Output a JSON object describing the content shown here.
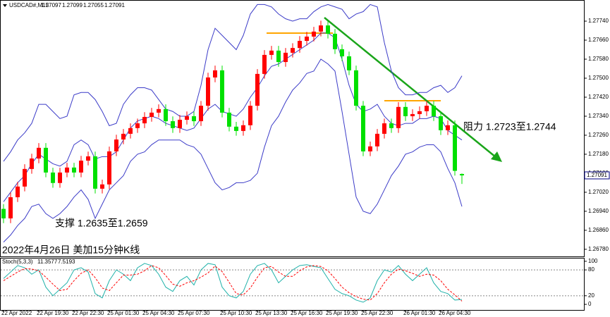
{
  "chart_data": [
    {
      "type": "candlestick",
      "title": "USDCAD#,M15",
      "open": [
        1.2695,
        1.2691,
        1.26999,
        1.27044,
        1.27118,
        1.27162,
        1.27207,
        1.27103,
        1.27059,
        1.27103,
        1.27124,
        1.27103,
        1.27153,
        1.27171,
        1.27035,
        1.27053,
        1.27192,
        1.27242,
        1.27266,
        1.2729,
        1.2731,
        1.27337,
        1.27355,
        1.2737,
        1.27319,
        1.2729,
        1.27325,
        1.2734,
        1.27319,
        1.27384,
        1.27503,
        1.27533,
        1.27355,
        1.27296,
        1.27278,
        1.27302,
        1.27384,
        1.27518,
        1.27598,
        1.27616,
        1.27568,
        1.27607,
        1.27627,
        1.27657,
        1.27675,
        1.27696,
        1.27722,
        1.27687,
        1.27622,
        1.27592,
        1.27533,
        1.27384,
        1.27192,
        1.27213,
        1.27266,
        1.2731,
        1.2729,
        1.27379,
        1.2734,
        1.27349,
        1.27361,
        1.27384,
        1.2734,
        1.27281,
        1.27302,
        1.27097
      ],
      "high": [
        1.2697,
        1.27019,
        1.27064,
        1.27138,
        1.27182,
        1.27227,
        1.27227,
        1.27123,
        1.27123,
        1.27144,
        1.27144,
        1.27173,
        1.27191,
        1.27191,
        1.27073,
        1.27212,
        1.27262,
        1.27286,
        1.2731,
        1.2733,
        1.27357,
        1.27375,
        1.2739,
        1.2739,
        1.27339,
        1.27345,
        1.2736,
        1.2736,
        1.27404,
        1.27523,
        1.27553,
        1.27553,
        1.27375,
        1.27316,
        1.27322,
        1.27404,
        1.27538,
        1.27618,
        1.27636,
        1.27636,
        1.27627,
        1.27647,
        1.27677,
        1.27695,
        1.27716,
        1.27742,
        1.27742,
        1.27707,
        1.27642,
        1.27612,
        1.27553,
        1.27404,
        1.27233,
        1.27286,
        1.2733,
        1.2733,
        1.27399,
        1.27399,
        1.27369,
        1.27381,
        1.27404,
        1.27404,
        1.2736,
        1.27322,
        1.27322,
        1.27099
      ],
      "low": [
        1.2689,
        1.2689,
        1.26979,
        1.27024,
        1.27098,
        1.27142,
        1.27083,
        1.27039,
        1.27039,
        1.27083,
        1.27083,
        1.27083,
        1.27133,
        1.27015,
        1.27015,
        1.27033,
        1.27172,
        1.27222,
        1.27246,
        1.2727,
        1.2729,
        1.27317,
        1.27335,
        1.27299,
        1.2727,
        1.2727,
        1.27305,
        1.27299,
        1.27299,
        1.27364,
        1.27483,
        1.27335,
        1.27276,
        1.27258,
        1.27258,
        1.27282,
        1.27364,
        1.27498,
        1.27578,
        1.27548,
        1.27548,
        1.27587,
        1.27607,
        1.27637,
        1.27655,
        1.27676,
        1.27667,
        1.27602,
        1.27572,
        1.27513,
        1.27364,
        1.27172,
        1.27172,
        1.27193,
        1.27246,
        1.2727,
        1.2727,
        1.2732,
        1.2732,
        1.27329,
        1.27341,
        1.2732,
        1.27261,
        1.27261,
        1.2709,
        1.27055
      ],
      "close": [
        1.2691,
        1.26999,
        1.27044,
        1.27118,
        1.27162,
        1.27207,
        1.27103,
        1.27059,
        1.27103,
        1.27124,
        1.27103,
        1.27153,
        1.27171,
        1.27035,
        1.27053,
        1.27192,
        1.27242,
        1.27266,
        1.2729,
        1.2731,
        1.27337,
        1.27355,
        1.2737,
        1.27319,
        1.2729,
        1.27325,
        1.2734,
        1.27319,
        1.27384,
        1.27503,
        1.27533,
        1.27355,
        1.27296,
        1.27278,
        1.27302,
        1.27384,
        1.27518,
        1.27598,
        1.27616,
        1.27568,
        1.27607,
        1.27627,
        1.27657,
        1.27675,
        1.27696,
        1.27722,
        1.27687,
        1.27622,
        1.27592,
        1.27533,
        1.27384,
        1.27192,
        1.27213,
        1.27266,
        1.2731,
        1.2729,
        1.27379,
        1.2734,
        1.27349,
        1.27361,
        1.27384,
        1.2734,
        1.27281,
        1.27302,
        1.2711,
        1.27091
      ],
      "up_color": "#ff0000",
      "down_color": "#00e000",
      "overlays": [
        {
          "color": "#3c3cc8",
          "values": [
            1.2715,
            1.2719,
            1.2724,
            1.2727,
            1.2731,
            1.2739,
            1.2739,
            1.2736,
            1.2733,
            1.2734,
            1.2743,
            1.2744,
            1.2744,
            1.2741,
            1.2736,
            1.273,
            1.2731,
            1.2739,
            1.2743,
            1.2746,
            1.2746,
            1.2745,
            1.2741,
            1.2737,
            1.2736,
            1.2734,
            1.2734,
            1.2736,
            1.2747,
            1.2762,
            1.2771,
            1.2768,
            1.2765,
            1.2762,
            1.2768,
            1.2777,
            1.2781,
            1.2781,
            1.278,
            1.2777,
            1.2775,
            1.2774,
            1.2775,
            1.2775,
            1.2778,
            1.278,
            1.2781,
            1.278,
            1.2779,
            1.2775,
            1.2777,
            1.2778,
            1.2781,
            1.278,
            1.2765,
            1.2753,
            1.2746,
            1.2743,
            1.2743,
            1.2744,
            1.2744,
            1.2746,
            1.2747,
            1.2744,
            1.2746,
            1.2751
          ]
        },
        {
          "color": "#3c3cc8",
          "values": [
            1.2698,
            1.2702,
            1.2706,
            1.2709,
            1.2714,
            1.2718,
            1.2716,
            1.2714,
            1.2713,
            1.2715,
            1.2722,
            1.2724,
            1.2722,
            1.2716,
            1.2717,
            1.2717,
            1.2719,
            1.2724,
            1.2729,
            1.2732,
            1.2733,
            1.2734,
            1.2733,
            1.2731,
            1.273,
            1.2729,
            1.2728,
            1.2729,
            1.2733,
            1.2737,
            1.2739,
            1.2736,
            1.2735,
            1.2734,
            1.2737,
            1.2742,
            1.2746,
            1.2751,
            1.2755,
            1.2756,
            1.2758,
            1.276,
            1.2762,
            1.2764,
            1.2766,
            1.2769,
            1.2769,
            1.2767,
            1.2758,
            1.2747,
            1.2739,
            1.2736,
            1.2737,
            1.2739,
            1.2734,
            1.2731,
            1.273,
            1.2731,
            1.2731,
            1.2733,
            1.2733,
            1.2734,
            1.2733,
            1.2728,
            1.2726,
            1.2724
          ]
        },
        {
          "color": "#3c3cc8",
          "values": [
            1.2681,
            1.2684,
            1.2688,
            1.2691,
            1.2696,
            1.2697,
            1.2693,
            1.2691,
            1.2693,
            1.2696,
            1.27,
            1.2703,
            1.2699,
            1.2691,
            1.2697,
            1.2703,
            1.2706,
            1.2709,
            1.2715,
            1.2718,
            1.2719,
            1.2722,
            1.2724,
            1.2724,
            1.2724,
            1.2724,
            1.2722,
            1.2721,
            1.2718,
            1.2712,
            1.2706,
            1.2703,
            1.2704,
            1.2706,
            1.2706,
            1.2707,
            1.271,
            1.2721,
            1.273,
            1.2734,
            1.274,
            1.2745,
            1.2748,
            1.2752,
            1.2753,
            1.2758,
            1.2756,
            1.2753,
            1.2736,
            1.2718,
            1.27,
            1.2694,
            1.2693,
            1.2697,
            1.2703,
            1.2709,
            1.2713,
            1.2718,
            1.2719,
            1.2721,
            1.2722,
            1.2722,
            1.2719,
            1.2712,
            1.2706,
            1.2696
          ]
        }
      ],
      "ylim": [
        1.2675,
        1.27829
      ],
      "yticks": [
        {
          "value": 1.2774,
          "label": "1.27740"
        },
        {
          "value": 1.2766,
          "label": "1.27660"
        },
        {
          "value": 1.2758,
          "label": "1.27580"
        },
        {
          "value": 1.275,
          "label": "1.27500"
        },
        {
          "value": 1.2742,
          "label": "1.27420"
        },
        {
          "value": 1.2734,
          "label": "1.27340"
        },
        {
          "value": 1.2726,
          "label": "1.27260"
        },
        {
          "value": 1.2718,
          "label": "1.27180"
        },
        {
          "value": 1.271,
          "label": "1.27100"
        },
        {
          "value": 1.2702,
          "label": "1.27020"
        },
        {
          "value": 1.2694,
          "label": "1.26940"
        },
        {
          "value": 1.2686,
          "label": "1.26860"
        },
        {
          "value": 1.2678,
          "label": "1.26780"
        }
      ],
      "annotations": [
        "支撑 1.2635至1.2659",
        "阻力 1.2723至1.2744",
        "2022年4月26日 美加15分钟K线"
      ]
    },
    {
      "type": "line",
      "title": "Stoch(5,3,3)",
      "series": [
        {
          "color": "#20b2aa",
          "values": [
            60,
            75,
            90,
            85,
            70,
            80,
            40,
            20,
            35,
            50,
            80,
            85,
            75,
            25,
            15,
            55,
            80,
            70,
            55,
            85,
            95,
            90,
            70,
            40,
            30,
            55,
            65,
            45,
            80,
            95,
            92,
            40,
            20,
            15,
            30,
            70,
            90,
            95,
            80,
            50,
            65,
            80,
            90,
            92,
            88,
            85,
            60,
            35,
            25,
            20,
            10,
            5,
            15,
            55,
            80,
            75,
            90,
            70,
            55,
            70,
            85,
            50,
            30,
            25,
            10,
            11.3577
          ]
        },
        {
          "color": "#ff0000",
          "dash": true,
          "values": [
            55,
            65,
            75,
            83,
            82,
            78,
            63,
            47,
            32,
            35,
            55,
            72,
            80,
            62,
            38,
            32,
            50,
            68,
            68,
            70,
            78,
            90,
            85,
            67,
            47,
            42,
            50,
            55,
            63,
            73,
            89,
            76,
            51,
            25,
            22,
            38,
            63,
            85,
            88,
            75,
            65,
            65,
            78,
            87,
            90,
            88,
            78,
            60,
            40,
            27,
            18,
            12,
            10,
            25,
            50,
            70,
            82,
            78,
            72,
            65,
            70,
            68,
            55,
            35,
            22,
            7.5193
          ]
        }
      ],
      "ylim": [
        -13,
        108
      ],
      "yticks": [
        0,
        20,
        80,
        100
      ],
      "levels": [
        20,
        80
      ],
      "xticks": [
        {
          "value": 0,
          "label": "22 Apr 2022"
        },
        {
          "value": 5,
          "label": "22 Apr 19:30"
        },
        {
          "value": 10,
          "label": "22 Apr 22:30"
        },
        {
          "value": 15,
          "label": "25 Apr 01:30"
        },
        {
          "value": 20,
          "label": "25 Apr 04:30"
        },
        {
          "value": 25,
          "label": "25 Apr 07:30"
        },
        {
          "value": 31,
          "label": "25 Apr 10:30"
        },
        {
          "value": 36,
          "label": "25 Apr 13:30"
        },
        {
          "value": 41,
          "label": "25 Apr 16:30"
        },
        {
          "value": 46,
          "label": "25 Apr 19:30"
        },
        {
          "value": 51,
          "label": "25 Apr 22:30"
        },
        {
          "value": 57,
          "label": "26 Apr 01:30"
        },
        {
          "value": 62,
          "label": "26 Apr 04:30"
        }
      ]
    }
  ]
}
